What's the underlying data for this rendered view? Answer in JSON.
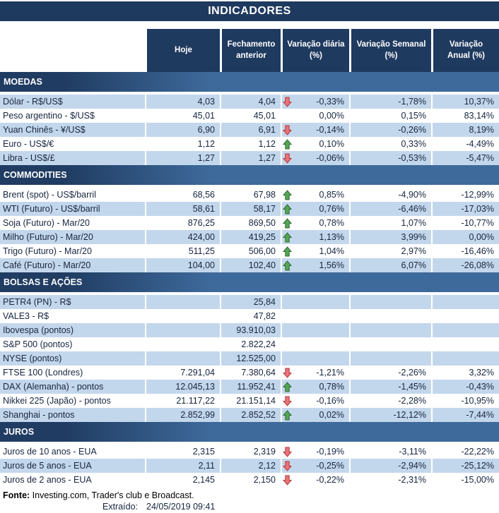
{
  "title": "INDICADORES",
  "header": {
    "cols": [
      {
        "l1": "Hoje",
        "l2": ""
      },
      {
        "l1": "Fechamento",
        "l2": "anterior"
      },
      {
        "l1": "Variação diária",
        "l2": "(%)"
      },
      {
        "l1": "Variação Semanal",
        "l2": "(%)"
      },
      {
        "l1": "Variação",
        "l2": "Anual (%)"
      }
    ]
  },
  "sections": [
    {
      "name": "MOEDAS",
      "first_row_striped": true,
      "rows": [
        {
          "label": "Dólar - R$/US$",
          "hoje": "4,03",
          "fechamento": "4,04",
          "arrow": "down",
          "var_diaria": "-0,33%",
          "var_semanal": "-1,78%",
          "var_anual": "10,37%"
        },
        {
          "label": "Peso argentino - $/US$",
          "hoje": "45,01",
          "fechamento": "45,01",
          "arrow": "",
          "var_diaria": "0,00%",
          "var_semanal": "0,15%",
          "var_anual": "83,14%"
        },
        {
          "label": "Yuan Chinês - ¥/US$",
          "hoje": "6,90",
          "fechamento": "6,91",
          "arrow": "down",
          "var_diaria": "-0,14%",
          "var_semanal": "-0,26%",
          "var_anual": "8,19%"
        },
        {
          "label": "Euro - US$/€",
          "hoje": "1,12",
          "fechamento": "1,12",
          "arrow": "up",
          "var_diaria": "0,10%",
          "var_semanal": "0,33%",
          "var_anual": "-4,49%"
        },
        {
          "label": "Libra - US$/£",
          "hoje": "1,27",
          "fechamento": "1,27",
          "arrow": "down",
          "var_diaria": "-0,06%",
          "var_semanal": "-0,53%",
          "var_anual": "-5,47%"
        }
      ]
    },
    {
      "name": "COMMODITIES",
      "first_row_striped": false,
      "rows": [
        {
          "label": "Brent (spot) - US$/barril",
          "hoje": "68,56",
          "fechamento": "67,98",
          "arrow": "up",
          "var_diaria": "0,85%",
          "var_semanal": "-4,90%",
          "var_anual": "-12,99%"
        },
        {
          "label": "WTI (Futuro) - US$/barril",
          "hoje": "58,61",
          "fechamento": "58,17",
          "arrow": "up",
          "var_diaria": "0,76%",
          "var_semanal": "-6,46%",
          "var_anual": "-17,03%"
        },
        {
          "label": "Soja (Futuro) - Mar/20",
          "hoje": "876,25",
          "fechamento": "869,50",
          "arrow": "up",
          "var_diaria": "0,78%",
          "var_semanal": "1,07%",
          "var_anual": "-10,77%"
        },
        {
          "label": "Milho (Futuro) - Mar/20",
          "hoje": "424,00",
          "fechamento": "419,25",
          "arrow": "up",
          "var_diaria": "1,13%",
          "var_semanal": "3,99%",
          "var_anual": "0,00%"
        },
        {
          "label": "Trigo (Futuro) - Mar/20",
          "hoje": "511,25",
          "fechamento": "506,00",
          "arrow": "up",
          "var_diaria": "1,04%",
          "var_semanal": "2,97%",
          "var_anual": "-16,46%"
        },
        {
          "label": "Café (Futuro) - Mar/20",
          "hoje": "104,00",
          "fechamento": "102,40",
          "arrow": "up",
          "var_diaria": "1,56%",
          "var_semanal": "6,07%",
          "var_anual": "-26,08%"
        }
      ]
    },
    {
      "name": "BOLSAS E AÇÕES",
      "first_row_striped": true,
      "rows": [
        {
          "label": "PETR4 (PN) - R$",
          "hoje": "",
          "fechamento": "25,84",
          "arrow": "",
          "var_diaria": "",
          "var_semanal": "",
          "var_anual": ""
        },
        {
          "label": "VALE3 - R$",
          "hoje": "",
          "fechamento": "47,82",
          "arrow": "",
          "var_diaria": "",
          "var_semanal": "",
          "var_anual": ""
        },
        {
          "label": "Ibovespa (pontos)",
          "hoje": "",
          "fechamento": "93.910,03",
          "arrow": "",
          "var_diaria": "",
          "var_semanal": "",
          "var_anual": ""
        },
        {
          "label": "S&P 500 (pontos)",
          "hoje": "",
          "fechamento": "2.822,24",
          "arrow": "",
          "var_diaria": "",
          "var_semanal": "",
          "var_anual": ""
        },
        {
          "label": "NYSE (pontos)",
          "hoje": "",
          "fechamento": "12.525,00",
          "arrow": "",
          "var_diaria": "",
          "var_semanal": "",
          "var_anual": ""
        },
        {
          "label": "FTSE 100 (Londres)",
          "hoje": "7.291,04",
          "fechamento": "7.380,64",
          "arrow": "down",
          "var_diaria": "-1,21%",
          "var_semanal": "-2,26%",
          "var_anual": "3,32%"
        },
        {
          "label": "DAX (Alemanha) - pontos",
          "hoje": "12.045,13",
          "fechamento": "11.952,41",
          "arrow": "up",
          "var_diaria": "0,78%",
          "var_semanal": "-1,45%",
          "var_anual": "-0,43%"
        },
        {
          "label": "Nikkei 225 (Japão) - pontos",
          "hoje": "21.117,22",
          "fechamento": "21.151,14",
          "arrow": "down",
          "var_diaria": "-0,16%",
          "var_semanal": "-2,28%",
          "var_anual": "-10,95%"
        },
        {
          "label": "Shanghai - pontos",
          "hoje": "2.852,99",
          "fechamento": "2.852,52",
          "arrow": "up",
          "var_diaria": "0,02%",
          "var_semanal": "-12,12%",
          "var_anual": "-7,44%"
        }
      ]
    },
    {
      "name": "JUROS",
      "first_row_striped": false,
      "rows": [
        {
          "label": "Juros de 10 anos - EUA",
          "hoje": "2,315",
          "fechamento": "2,319",
          "arrow": "down",
          "var_diaria": "-0,19%",
          "var_semanal": "-3,11%",
          "var_anual": "-22,22%"
        },
        {
          "label": "Juros de 5 anos - EUA",
          "hoje": "2,11",
          "fechamento": "2,12",
          "arrow": "down",
          "var_diaria": "-0,25%",
          "var_semanal": "-2,94%",
          "var_anual": "-25,12%"
        },
        {
          "label": "Juros de 2 anos - EUA",
          "hoje": "2,145",
          "fechamento": "2,150",
          "arrow": "down",
          "var_diaria": "-0,22%",
          "var_semanal": "-2,31%",
          "var_anual": "-15,00%"
        }
      ]
    }
  ],
  "footer": {
    "fonte_label": "Fonte:",
    "fonte_text": " Investing.com, Trader's club e Broadcast.",
    "extraido_label": "Extraído:",
    "extraido_value": "24/05/2019 09:41"
  },
  "colors": {
    "navy": "#1F3A5F",
    "band_left": "#203C62",
    "band_right": "#3E6A9B",
    "row_stripe": "#C3D7EC",
    "text": "#17253F",
    "arrow_up_fill": "#55A555",
    "arrow_up_stroke": "#2E6B31",
    "arrow_down_fill": "#E87478",
    "arrow_down_stroke": "#B23B3F"
  }
}
